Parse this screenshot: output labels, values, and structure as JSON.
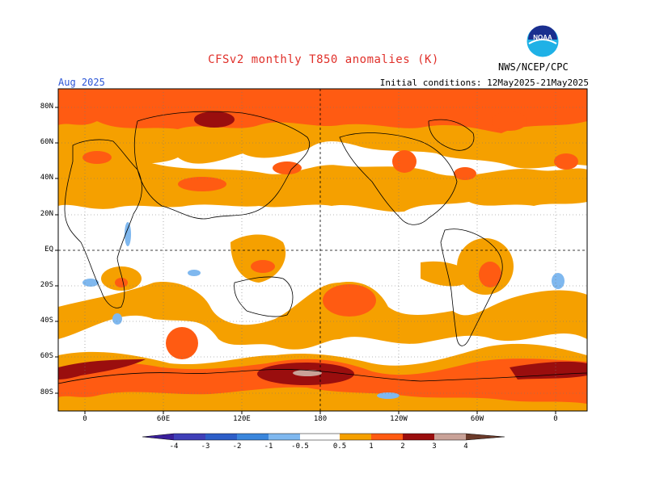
{
  "header": {
    "title": "CFSv2 monthly T850 anomalies (K)",
    "month": "Aug 2025",
    "initial_conditions": "Initial conditions: 12May2025-21May2025",
    "agency": "NWS/NCEP/CPC",
    "logo_text": "NOAA"
  },
  "map": {
    "lat_labels": [
      "80N",
      "60N",
      "40N",
      "20N",
      "EQ",
      "20S",
      "40S",
      "60S",
      "80S"
    ],
    "lon_labels": [
      "0",
      "60E",
      "120E",
      "180",
      "120W",
      "60W",
      "0"
    ]
  },
  "colorbar": {
    "labels": [
      "-4",
      "-3",
      "-2",
      "-1",
      "-0.5",
      "0.5",
      "1",
      "2",
      "3",
      "4"
    ],
    "colors": {
      "neg4": "#3a1f9a",
      "neg3": "#3f56c8",
      "neg2": "#2f72d4",
      "neg1": "#4a9ae6",
      "neg05": "#7fb8ef",
      "pos05": "#f5a000",
      "pos1": "#ff5b12",
      "pos2": "#d82a00",
      "pos3": "#9a0e0e",
      "pos4": "#c9a298",
      "pos5": "#6b3a2a"
    }
  }
}
